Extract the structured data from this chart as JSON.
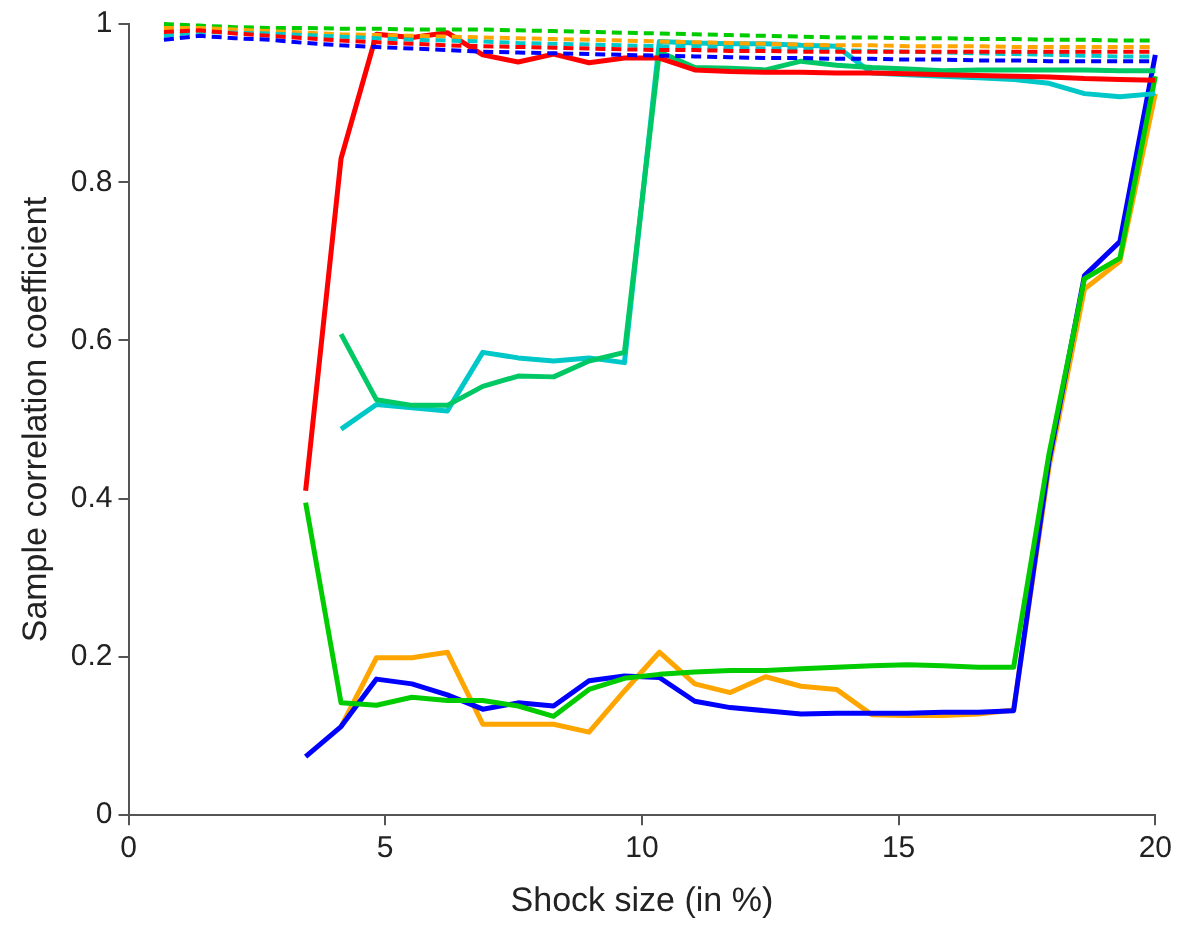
{
  "chart_data": {
    "type": "line",
    "xlabel": "Shock size (in %)",
    "ylabel": "Sample correlation coefficient",
    "xlim": [
      0,
      20
    ],
    "xticks": [
      0,
      5,
      10,
      15,
      20
    ],
    "ylim": [
      0,
      1
    ],
    "yticks": [
      0,
      0.2,
      0.4,
      0.6,
      0.8,
      1
    ],
    "grid": false,
    "legend": false,
    "marker": "none",
    "series": [
      {
        "color": "#0000ff",
        "line_style": "dashed",
        "x": [
          0.69,
          1.38,
          2.07,
          2.76,
          3.45,
          4.14,
          4.83,
          5.52,
          6.21,
          6.9,
          7.59,
          8.28,
          8.97,
          9.66,
          10.34,
          11.03,
          11.72,
          12.41,
          13.1,
          13.79,
          14.48,
          15.17,
          15.86,
          16.55,
          17.24,
          17.93,
          18.62,
          19.31,
          20
        ],
        "values": [
          0.98,
          0.985,
          0.982,
          0.98,
          0.976,
          0.973,
          0.971,
          0.969,
          0.967,
          0.965,
          0.964,
          0.963,
          0.962,
          0.961,
          0.96,
          0.959,
          0.958,
          0.957,
          0.957,
          0.956,
          0.956,
          0.955,
          0.955,
          0.954,
          0.954,
          0.953,
          0.953,
          0.953,
          0.953
        ]
      },
      {
        "color": "#ff0000",
        "line_style": "dashed",
        "x": [
          0.69,
          1.38,
          2.07,
          2.76,
          3.45,
          4.14,
          4.83,
          5.52,
          6.21,
          6.9,
          7.59,
          8.28,
          8.97,
          9.66,
          10.34,
          11.03,
          11.72,
          12.41,
          13.1,
          13.79,
          14.48,
          15.17,
          15.86,
          16.55,
          17.24,
          17.93,
          18.62,
          19.31,
          20
        ],
        "values": [
          0.99,
          0.992,
          0.988,
          0.985,
          0.982,
          0.979,
          0.977,
          0.975,
          0.973,
          0.972,
          0.971,
          0.97,
          0.969,
          0.968,
          0.967,
          0.967,
          0.966,
          0.966,
          0.965,
          0.965,
          0.965,
          0.965,
          0.965,
          0.965,
          0.965,
          0.965,
          0.965,
          0.965,
          0.965
        ]
      },
      {
        "color": "#00c8c8",
        "line_style": "dashed",
        "x": [
          0.69,
          1.38,
          2.07,
          2.76,
          3.45,
          4.14,
          4.83,
          5.52,
          6.21,
          6.9,
          7.59,
          8.28,
          8.97,
          9.66,
          10.34,
          11.03,
          11.72,
          12.41,
          13.1,
          13.79,
          14.48,
          15.17,
          15.86,
          16.55,
          17.24,
          17.93,
          18.62,
          19.31,
          20
        ],
        "values": [
          0.985,
          0.99,
          0.989,
          0.988,
          0.986,
          0.984,
          0.982,
          0.98,
          0.979,
          0.978,
          0.976,
          0.975,
          0.974,
          0.973,
          0.972,
          0.971,
          0.97,
          0.969,
          0.968,
          0.967,
          0.966,
          0.965,
          0.964,
          0.963,
          0.962,
          0.961,
          0.96,
          0.959,
          0.959
        ]
      },
      {
        "color": "#ffa500",
        "line_style": "dashed",
        "x": [
          0.69,
          1.38,
          2.07,
          2.76,
          3.45,
          4.14,
          4.83,
          5.52,
          6.21,
          6.9,
          7.59,
          8.28,
          8.97,
          9.66,
          10.34,
          11.03,
          11.72,
          12.41,
          13.1,
          13.79,
          14.48,
          15.17,
          15.86,
          16.55,
          17.24,
          17.93,
          18.62,
          19.31,
          20
        ],
        "values": [
          0.995,
          0.995,
          0.993,
          0.991,
          0.989,
          0.987,
          0.986,
          0.985,
          0.984,
          0.983,
          0.982,
          0.981,
          0.98,
          0.979,
          0.978,
          0.977,
          0.976,
          0.975,
          0.974,
          0.973,
          0.973,
          0.972,
          0.972,
          0.972,
          0.971,
          0.971,
          0.971,
          0.971,
          0.971
        ]
      },
      {
        "color": "#00cc00",
        "line_style": "dashed",
        "x": [
          0.69,
          1.38,
          2.07,
          2.76,
          3.45,
          4.14,
          4.83,
          5.52,
          6.21,
          6.9,
          7.59,
          8.28,
          8.97,
          9.66,
          10.34,
          11.03,
          11.72,
          12.41,
          13.1,
          13.79,
          14.48,
          15.17,
          15.86,
          16.55,
          17.24,
          17.93,
          18.62,
          19.31,
          20
        ],
        "values": [
          1,
          0.998,
          0.996,
          0.995,
          0.995,
          0.994,
          0.994,
          0.993,
          0.993,
          0.993,
          0.992,
          0.991,
          0.99,
          0.989,
          0.988,
          0.987,
          0.986,
          0.985,
          0.984,
          0.983,
          0.983,
          0.982,
          0.982,
          0.981,
          0.981,
          0.98,
          0.98,
          0.979,
          0.979
        ]
      },
      {
        "color": "#ff0000",
        "line_style": "solid",
        "x": [
          3.45,
          4.14,
          4.83,
          5.52,
          6.21,
          6.9,
          7.59,
          8.28,
          8.97,
          9.66,
          10.34,
          11.03,
          11.72,
          12.41,
          13.1,
          13.79,
          14.48,
          15.17,
          15.86,
          16.55,
          17.24,
          17.93,
          18.62,
          19.31,
          20
        ],
        "values": [
          0.41,
          0.83,
          0.987,
          0.983,
          0.989,
          0.961,
          0.952,
          0.962,
          0.951,
          0.957,
          0.957,
          0.942,
          0.94,
          0.939,
          0.939,
          0.938,
          0.938,
          0.937,
          0.936,
          0.935,
          0.934,
          0.933,
          0.931,
          0.93,
          0.929
        ]
      },
      {
        "color": "#00c864",
        "line_style": "solid",
        "x": [
          4.14,
          4.83,
          5.52,
          6.21,
          6.9,
          7.59,
          8.28,
          8.97,
          9.66,
          10.34,
          11.03,
          11.72,
          12.41,
          13.1,
          13.79,
          14.48,
          15.17,
          15.86,
          16.55,
          17.24,
          17.93,
          18.62,
          19.31,
          20
        ],
        "values": [
          0.608,
          0.525,
          0.518,
          0.518,
          0.542,
          0.555,
          0.554,
          0.574,
          0.585,
          0.965,
          0.945,
          0.944,
          0.942,
          0.953,
          0.948,
          0.945,
          0.943,
          0.941,
          0.942,
          0.942,
          0.942,
          0.942,
          0.941,
          0.941
        ]
      },
      {
        "color": "#00c8c8",
        "line_style": "solid",
        "x": [
          4.14,
          4.83,
          5.52,
          6.21,
          6.9,
          7.59,
          8.28,
          8.97,
          9.66,
          10.34,
          11.03,
          11.72,
          12.41,
          13.1,
          13.79,
          14.48,
          15.17,
          15.86,
          16.55,
          17.24,
          17.93,
          18.62,
          19.31,
          20
        ],
        "values": [
          0.488,
          0.519,
          0.515,
          0.511,
          0.585,
          0.578,
          0.574,
          0.578,
          0.572,
          0.978,
          0.976,
          0.975,
          0.975,
          0.973,
          0.972,
          0.938,
          0.936,
          0.934,
          0.932,
          0.93,
          0.925,
          0.912,
          0.908,
          0.912
        ]
      },
      {
        "color": "#00cc00",
        "line_style": "solid",
        "x": [
          3.45,
          4.14,
          4.83,
          5.52,
          6.21,
          6.9,
          7.59,
          8.28,
          8.97,
          9.66,
          10.34,
          11.03,
          11.72,
          12.41,
          13.1,
          13.79,
          14.48,
          15.17,
          15.86,
          16.55,
          17.24,
          17.93,
          18.62,
          19.31,
          20
        ],
        "values": [
          0.395,
          0.142,
          0.139,
          0.149,
          0.145,
          0.145,
          0.138,
          0.125,
          0.159,
          0.173,
          0.178,
          0.181,
          0.183,
          0.183,
          0.185,
          0.187,
          0.189,
          0.19,
          0.189,
          0.187,
          0.187,
          0.457,
          0.678,
          0.704,
          0.934
        ]
      },
      {
        "color": "#0000ff",
        "line_style": "solid",
        "x": [
          3.45,
          4.14,
          4.83,
          5.52,
          6.21,
          6.9,
          7.59,
          8.28,
          8.97,
          9.66,
          10.34,
          11.03,
          11.72,
          12.41,
          13.1,
          13.79,
          14.48,
          15.17,
          15.86,
          16.55,
          17.24,
          17.93,
          18.62,
          19.31,
          20
        ],
        "values": [
          0.074,
          0.112,
          0.172,
          0.166,
          0.152,
          0.134,
          0.142,
          0.138,
          0.17,
          0.176,
          0.174,
          0.144,
          0.136,
          0.132,
          0.128,
          0.129,
          0.129,
          0.129,
          0.13,
          0.13,
          0.132,
          0.448,
          0.682,
          0.725,
          0.961
        ]
      },
      {
        "color": "#ffa500",
        "line_style": "solid",
        "x": [
          4.14,
          4.83,
          5.52,
          6.21,
          6.9,
          7.59,
          8.28,
          8.97,
          9.66,
          10.34,
          11.03,
          11.72,
          12.41,
          13.1,
          13.79,
          14.48,
          15.17,
          15.86,
          16.55,
          17.24,
          17.93,
          18.62,
          19.31,
          20
        ],
        "values": [
          0.112,
          0.199,
          0.199,
          0.206,
          0.115,
          0.115,
          0.115,
          0.105,
          0.157,
          0.206,
          0.166,
          0.155,
          0.175,
          0.163,
          0.159,
          0.127,
          0.126,
          0.126,
          0.128,
          0.133,
          0.44,
          0.665,
          0.7,
          0.912
        ]
      }
    ]
  }
}
